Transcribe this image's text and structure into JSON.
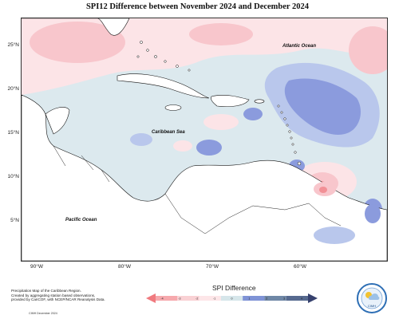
{
  "title": "SPI12 Difference between November 2024 and December 2024",
  "lat_labels": [
    "25°N",
    "20°N",
    "15°N",
    "10°N",
    "5°N"
  ],
  "lon_labels": [
    "90°W",
    "80°W",
    "70°W",
    "60°W"
  ],
  "ocean_labels": {
    "atlantic": "Atlantic Ocean",
    "caribbean": "Caribbean Sea",
    "pacific": "Pacific Ocean"
  },
  "footer": {
    "line1": "Precipitation Map of the Caribbean Region.",
    "line2": "Created by aggregating station based observations,",
    "line3": "provided by CariCOF, with NCEP/NCAR Reanalysis Data.",
    "credit": "CIMH December 2024"
  },
  "legend": {
    "title": "SPI Difference",
    "ticks": [
      "-4",
      "-3",
      "-2",
      "-1",
      "0",
      "1",
      "2",
      "3",
      "4"
    ],
    "colors": [
      "#f07a7f",
      "#f6a9ad",
      "#f9d1d4",
      "#fde6e8",
      "#d6e6ea",
      "#7f93d6",
      "#6f87a6",
      "#566a8f",
      "#36416e"
    ]
  },
  "logo": {
    "text": "CIMH",
    "icon": "cimh-logo-icon"
  },
  "colors": {
    "deficit_light": "#fce4e7",
    "deficit_mid": "#f8c6cc",
    "deficit_strong": "#f29096",
    "neutral": "#dce9ee",
    "wet_light": "#b9c7ec",
    "wet_mid": "#8b9bdd",
    "land": "#ffffff"
  }
}
